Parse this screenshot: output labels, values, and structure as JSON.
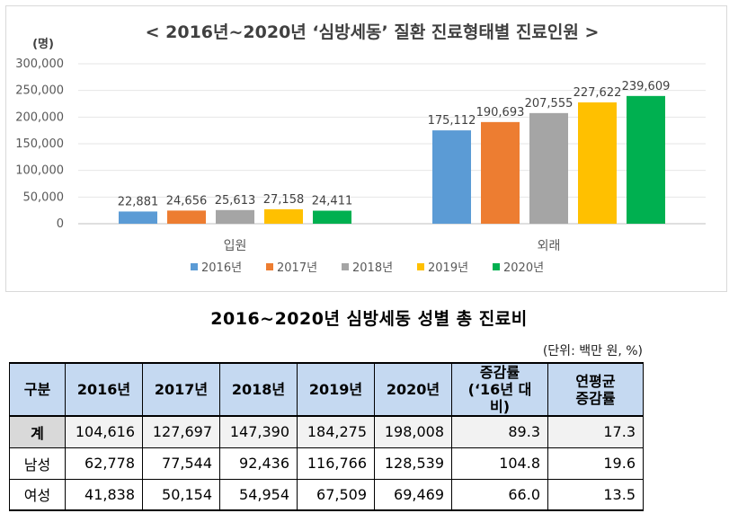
{
  "chart_data": {
    "type": "bar",
    "title": "< 2016년~2020년 ‘심방세동’ 질환 진료형태별 진료인원 >",
    "ylabel": "(명)",
    "xlabel": "",
    "ylim": [
      0,
      300000
    ],
    "yticks": [
      "0",
      "50,000",
      "100,000",
      "150,000",
      "200,000",
      "250,000",
      "300,000"
    ],
    "ytick_values": [
      0,
      50000,
      100000,
      150000,
      200000,
      250000,
      300000
    ],
    "grid": true,
    "legend_position": "bottom",
    "categories": [
      "입원",
      "외래"
    ],
    "series": [
      {
        "name": "2016년",
        "color": "#5b9bd5",
        "values": [
          22881,
          175112
        ],
        "labels": [
          "22,881",
          "175,112"
        ]
      },
      {
        "name": "2017년",
        "color": "#ed7d31",
        "values": [
          24656,
          190693
        ],
        "labels": [
          "24,656",
          "190,693"
        ]
      },
      {
        "name": "2018년",
        "color": "#a5a5a5",
        "values": [
          25613,
          207555
        ],
        "labels": [
          "25,613",
          "207,555"
        ]
      },
      {
        "name": "2019년",
        "color": "#ffc000",
        "values": [
          27158,
          227622
        ],
        "labels": [
          "27,158",
          "227,622"
        ]
      },
      {
        "name": "2020년",
        "color": "#00b050",
        "values": [
          24411,
          239609
        ],
        "labels": [
          "24,411",
          "239,609"
        ]
      }
    ]
  },
  "table": {
    "title": "2016~2020년 심방세동 성별 총 진료비",
    "unit": "(단위: 백만 원, %)",
    "headers": [
      "구분",
      "2016년",
      "2017년",
      "2018년",
      "2019년",
      "2020년",
      "증감률\n(‘16년 대비)",
      "연평균\n증감률"
    ],
    "rows": [
      [
        "계",
        "104,616",
        "127,697",
        "147,390",
        "184,275",
        "198,008",
        "89.3",
        "17.3"
      ],
      [
        "남성",
        "62,778",
        "77,544",
        "92,436",
        "116,766",
        "128,539",
        "104.8",
        "19.6"
      ],
      [
        "여성",
        "41,838",
        "50,154",
        "54,954",
        "67,509",
        "69,469",
        "66.0",
        "13.5"
      ]
    ]
  }
}
